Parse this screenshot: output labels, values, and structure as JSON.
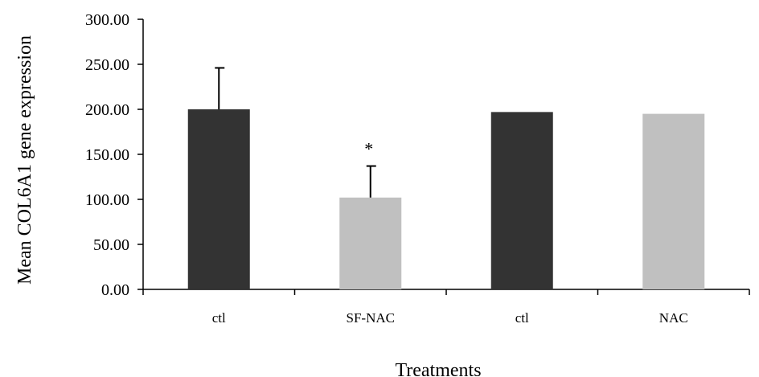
{
  "chart_data": {
    "type": "bar",
    "categories": [
      "ctl",
      "SF-NAC",
      "ctl",
      "NAC"
    ],
    "values": [
      200,
      102,
      197,
      195
    ],
    "error_plus": [
      46,
      35,
      null,
      null
    ],
    "bar_colors": [
      "#333333",
      "#c0c0c0",
      "#333333",
      "#c0c0c0"
    ],
    "annotations": [
      "",
      "*",
      "",
      ""
    ],
    "xlabel": "Treatments",
    "ylabel": "Mean COL6A1 gene expression",
    "ylim": [
      0,
      300
    ],
    "yticks": [
      0,
      50,
      100,
      150,
      200,
      250,
      300
    ],
    "ytick_labels": [
      "0.00",
      "50.00",
      "100.00",
      "150.00",
      "200.00",
      "250.00",
      "300.00"
    ],
    "grid": false,
    "legend": "none"
  }
}
